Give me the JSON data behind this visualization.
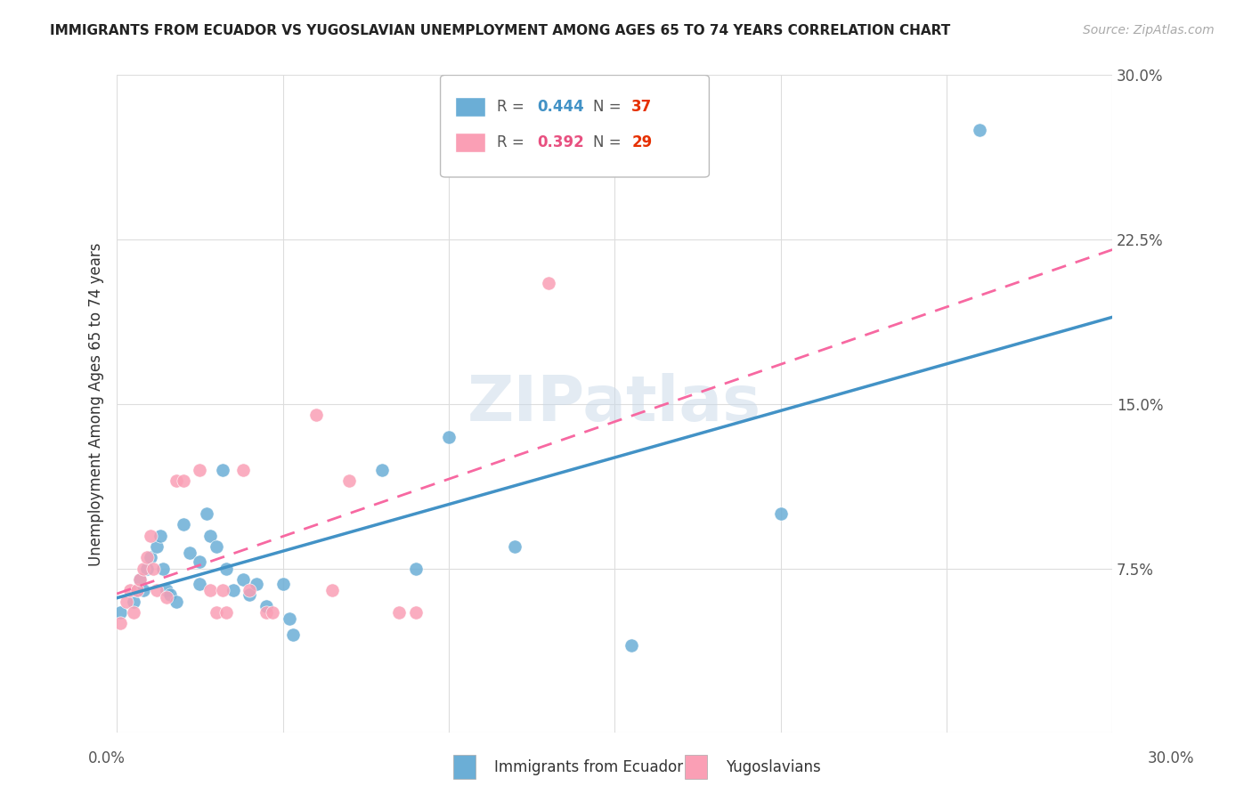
{
  "title": "IMMIGRANTS FROM ECUADOR VS YUGOSLAVIAN UNEMPLOYMENT AMONG AGES 65 TO 74 YEARS CORRELATION CHART",
  "source": "Source: ZipAtlas.com",
  "ylabel": "Unemployment Among Ages 65 to 74 years",
  "legend_label_1": "Immigrants from Ecuador",
  "legend_label_2": "Yugoslavians",
  "color_blue": "#6baed6",
  "color_pink": "#fa9fb5",
  "color_blue_line": "#4292c6",
  "color_pink_line": "#f768a1",
  "color_blue_text": "#4292c6",
  "color_pink_text": "#e85080",
  "color_red_text": "#e63000",
  "watermark": "ZIPatlas",
  "xlim": [
    0.0,
    0.3
  ],
  "ylim": [
    0.0,
    0.3
  ],
  "ecuador_x": [
    0.001,
    0.005,
    0.006,
    0.007,
    0.008,
    0.009,
    0.01,
    0.012,
    0.013,
    0.014,
    0.015,
    0.016,
    0.018,
    0.02,
    0.022,
    0.025,
    0.025,
    0.027,
    0.028,
    0.03,
    0.032,
    0.033,
    0.035,
    0.038,
    0.04,
    0.042,
    0.045,
    0.05,
    0.052,
    0.053,
    0.08,
    0.09,
    0.1,
    0.12,
    0.155,
    0.2,
    0.26
  ],
  "ecuador_y": [
    0.055,
    0.06,
    0.065,
    0.07,
    0.065,
    0.075,
    0.08,
    0.085,
    0.09,
    0.075,
    0.065,
    0.063,
    0.06,
    0.095,
    0.082,
    0.078,
    0.068,
    0.1,
    0.09,
    0.085,
    0.12,
    0.075,
    0.065,
    0.07,
    0.063,
    0.068,
    0.058,
    0.068,
    0.052,
    0.045,
    0.12,
    0.075,
    0.135,
    0.085,
    0.04,
    0.1,
    0.275
  ],
  "yugoslav_x": [
    0.001,
    0.003,
    0.004,
    0.005,
    0.006,
    0.007,
    0.008,
    0.009,
    0.01,
    0.011,
    0.012,
    0.015,
    0.018,
    0.02,
    0.025,
    0.028,
    0.03,
    0.032,
    0.033,
    0.038,
    0.04,
    0.045,
    0.047,
    0.06,
    0.065,
    0.07,
    0.085,
    0.09,
    0.13
  ],
  "yugoslav_y": [
    0.05,
    0.06,
    0.065,
    0.055,
    0.065,
    0.07,
    0.075,
    0.08,
    0.09,
    0.075,
    0.065,
    0.062,
    0.115,
    0.115,
    0.12,
    0.065,
    0.055,
    0.065,
    0.055,
    0.12,
    0.065,
    0.055,
    0.055,
    0.145,
    0.065,
    0.115,
    0.055,
    0.055,
    0.205
  ]
}
